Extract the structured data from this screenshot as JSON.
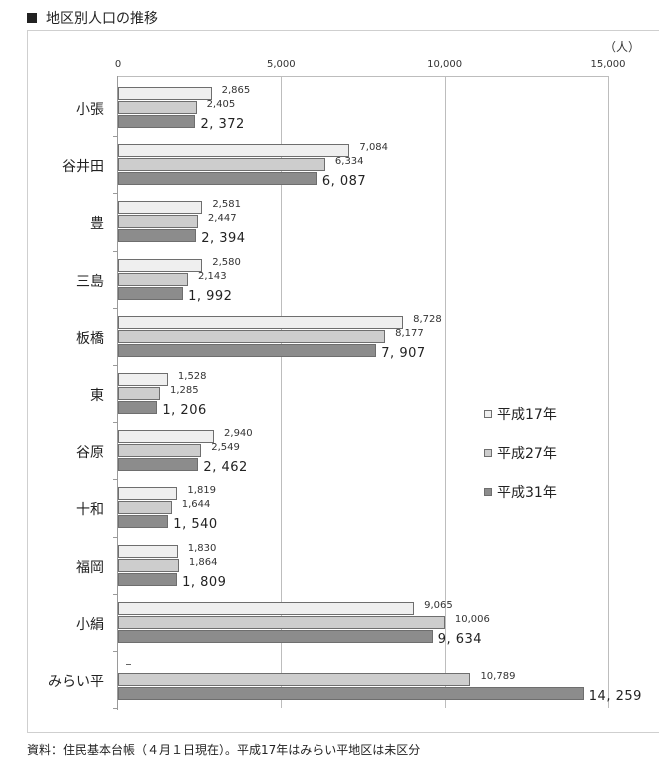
{
  "title": "地区別人口の推移",
  "unit_label": "（人）",
  "footnote": "資料：住民基本台帳（４月１日現在）。平成17年はみらい平地区は未区分",
  "axis": {
    "ticks": [
      "0",
      "5,000",
      "10,000",
      "15,000"
    ]
  },
  "legend": [
    {
      "label": "平成17年",
      "color": "#efefef"
    },
    {
      "label": "平成27年",
      "color": "#cdcdcd"
    },
    {
      "label": "平成31年",
      "color": "#8c8c8c"
    }
  ],
  "groups": [
    {
      "name": "小張",
      "labels": [
        "2,865",
        "2,405",
        "2, 372"
      ]
    },
    {
      "name": "谷井田",
      "labels": [
        "7,084",
        "6,334",
        "6, 087"
      ]
    },
    {
      "name": "豊",
      "labels": [
        "2,581",
        "2,447",
        "2, 394"
      ]
    },
    {
      "name": "三島",
      "labels": [
        "2,580",
        "2,143",
        "1, 992"
      ]
    },
    {
      "name": "板橋",
      "labels": [
        "8,728",
        "8,177",
        "7, 907"
      ]
    },
    {
      "name": "東",
      "labels": [
        "1,528",
        "1,285",
        "1, 206"
      ]
    },
    {
      "name": "谷原",
      "labels": [
        "2,940",
        "2,549",
        "2, 462"
      ]
    },
    {
      "name": "十和",
      "labels": [
        "1,819",
        "1,644",
        "1, 540"
      ]
    },
    {
      "name": "福岡",
      "labels": [
        "1,830",
        "1,864",
        "1, 809"
      ]
    },
    {
      "name": "小絹",
      "labels": [
        "9,065",
        "10,006",
        "9, 634"
      ]
    },
    {
      "name": "みらい平",
      "labels": [
        "–",
        "10,789",
        "14, 259"
      ]
    }
  ],
  "chart_data": {
    "type": "bar",
    "orientation": "horizontal",
    "title": "地区別人口の推移",
    "xlabel": "（人）",
    "ylabel": "",
    "xlim": [
      0,
      15000
    ],
    "x_ticks": [
      0,
      5000,
      10000,
      15000
    ],
    "grid": true,
    "legend_position": "right-middle",
    "categories": [
      "小張",
      "谷井田",
      "豊",
      "三島",
      "板橋",
      "東",
      "谷原",
      "十和",
      "福岡",
      "小絹",
      "みらい平"
    ],
    "series": [
      {
        "name": "平成17年",
        "values": [
          2865,
          7084,
          2581,
          2580,
          8728,
          1528,
          2940,
          1819,
          1830,
          9065,
          null
        ]
      },
      {
        "name": "平成27年",
        "values": [
          2405,
          6334,
          2447,
          2143,
          8177,
          1285,
          2549,
          1644,
          1864,
          10006,
          10789
        ]
      },
      {
        "name": "平成31年",
        "values": [
          2372,
          6087,
          2394,
          1992,
          7907,
          1206,
          2462,
          1540,
          1809,
          9634,
          14259
        ]
      }
    ],
    "annotations": [
      "平成17年はみらい平地区は未区分"
    ],
    "source": "資料：住民基本台帳（４月１日現在）"
  }
}
